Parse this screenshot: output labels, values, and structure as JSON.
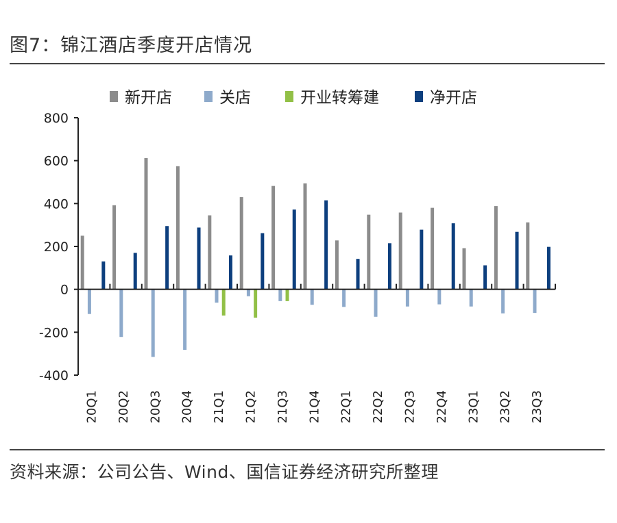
{
  "figure_title": "图7：锦江酒店季度开店情况",
  "source_note": "资料来源：公司公告、Wind、国信证券经济研究所整理",
  "chart_data": {
    "type": "bar",
    "categories": [
      "20Q1",
      "20Q2",
      "20Q3",
      "20Q4",
      "21Q1",
      "21Q2",
      "21Q3",
      "21Q4",
      "22Q1",
      "22Q2",
      "22Q3",
      "22Q4",
      "23Q1",
      "23Q2",
      "23Q3"
    ],
    "series": [
      {
        "name": "新开店",
        "color": "#8c8c8c",
        "values": [
          250,
          392,
          612,
          574,
          345,
          430,
          482,
          494,
          228,
          348,
          358,
          380,
          192,
          388,
          312
        ]
      },
      {
        "name": "关店",
        "color": "#8eaacb",
        "values": [
          -115,
          -222,
          -315,
          -282,
          -62,
          -32,
          -55,
          -72,
          -82,
          -128,
          -80,
          -70,
          -80,
          -112,
          -110
        ]
      },
      {
        "name": "开业转筹建",
        "color": "#92c047",
        "values": [
          0,
          0,
          0,
          0,
          -122,
          -132,
          -55,
          0,
          0,
          0,
          0,
          0,
          0,
          0,
          0
        ]
      },
      {
        "name": "净开店",
        "color": "#0d3f7e",
        "values": [
          130,
          170,
          295,
          288,
          158,
          262,
          372,
          415,
          142,
          215,
          278,
          308,
          112,
          268,
          198
        ]
      }
    ],
    "ylim": [
      -400,
      800
    ],
    "yticks": [
      800,
      600,
      400,
      200,
      0,
      -200,
      -400
    ],
    "legend_position": "top",
    "grid": false
  }
}
